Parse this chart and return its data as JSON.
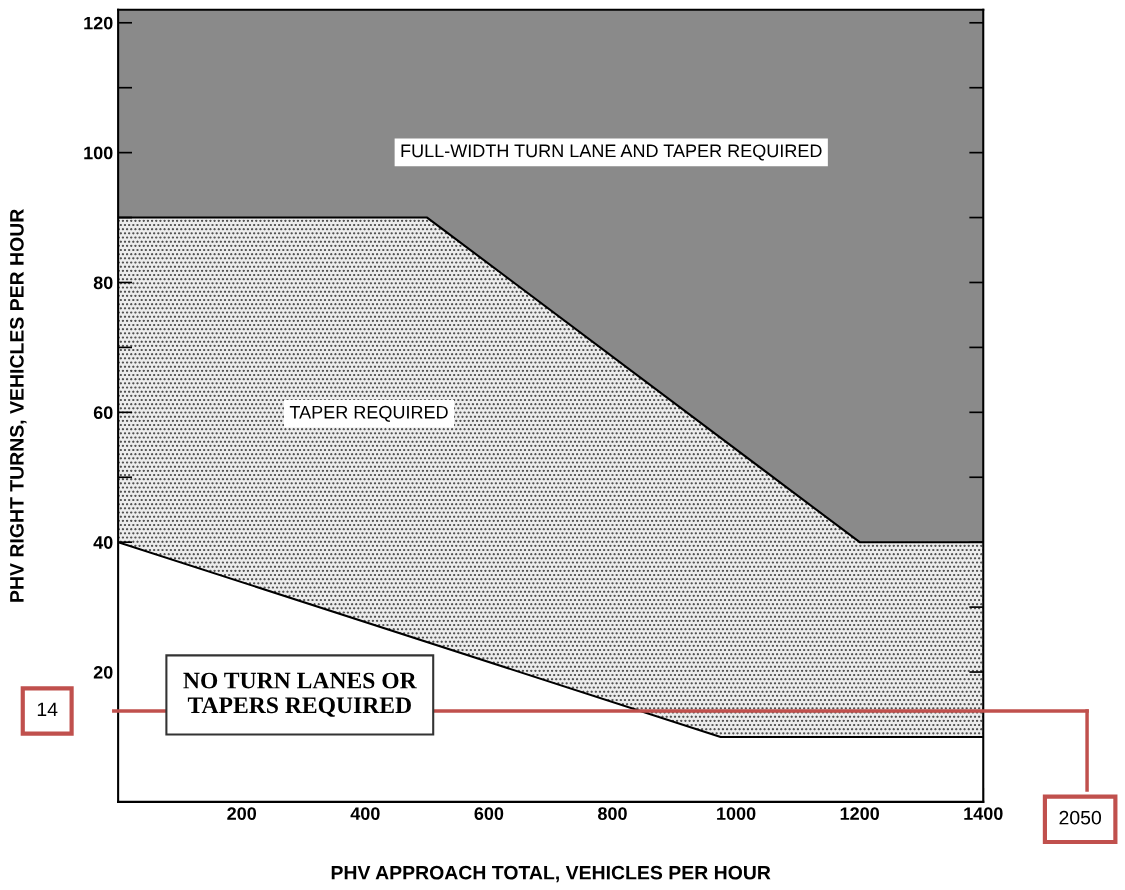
{
  "chart_data": {
    "type": "area",
    "xlabel": "PHV APPROACH TOTAL, VEHICLES PER HOUR",
    "ylabel": "PHV RIGHT TURNS, VEHICLES PER HOUR",
    "series": [
      {
        "color": "#ececec",
        "x": [
          0,
          500,
          1200,
          1400
        ],
        "values": [
          90,
          90,
          40,
          40
        ]
      },
      {
        "color": "#ffffff",
        "x": [
          0,
          975,
          1400
        ],
        "values": [
          40,
          10,
          10
        ]
      }
    ],
    "bands": [
      {
        "axis": "y",
        "from": 0,
        "to": 122,
        "color": "#8a8a8a"
      }
    ],
    "ref_lines": [
      {
        "axis": "y",
        "value": 14,
        "label": "14",
        "color": "#c0504d"
      }
    ],
    "annotations": [
      "FULL-WIDTH TURN LANE AND TAPER REQUIRED",
      "TAPER REQUIRED",
      "NO TURN LANES OR\nTAPERS REQUIRED",
      "2050"
    ],
    "xlim": [
      0,
      1400
    ],
    "ylim": [
      0,
      122
    ],
    "xticks": [
      200,
      400,
      600,
      800,
      1000,
      1200,
      1400
    ],
    "yticks": [
      {
        "value": 10,
        "label": null
      },
      20,
      {
        "value": 30,
        "label": null
      },
      40,
      {
        "value": 50,
        "label": null
      },
      60,
      {
        "value": 70,
        "label": null
      },
      80,
      {
        "value": 90,
        "label": null
      },
      100,
      {
        "value": 110,
        "label": null
      },
      120
    ],
    "grid": false
  }
}
